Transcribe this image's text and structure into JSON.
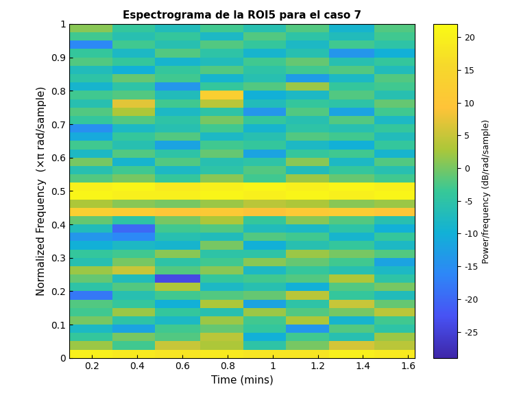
{
  "chart_data": {
    "type": "heatmap",
    "title": "Espectrograma de la ROI5 para el caso 7",
    "x_label": "Time (mins)",
    "y_label": "Normalized Frequency  (×π rad/sample)",
    "colorbar_label": "Power/frequency (dB/rad/sample)",
    "x_edges": [
      0.1,
      0.29,
      0.48,
      0.68,
      0.87,
      1.06,
      1.25,
      1.45,
      1.63
    ],
    "y_edges": [
      0,
      0.025,
      0.05,
      0.075,
      0.1,
      0.125,
      0.15,
      0.175,
      0.2,
      0.225,
      0.25,
      0.275,
      0.3,
      0.325,
      0.35,
      0.375,
      0.4,
      0.425,
      0.45,
      0.475,
      0.5,
      0.525,
      0.55,
      0.575,
      0.6,
      0.625,
      0.65,
      0.675,
      0.7,
      0.725,
      0.75,
      0.775,
      0.8,
      0.825,
      0.85,
      0.875,
      0.9,
      0.925,
      0.95,
      0.975,
      1
    ],
    "cells": [
      [
        20,
        19,
        18,
        19,
        18,
        18,
        20,
        19
      ],
      [
        2,
        -3,
        5,
        3,
        -5,
        0,
        6,
        4
      ],
      [
        -4,
        0,
        -2,
        4,
        -10,
        -3,
        -6,
        2
      ],
      [
        -8,
        -12,
        -3,
        -1,
        -4,
        -14,
        -2,
        -5
      ],
      [
        0,
        -5,
        -8,
        2,
        -3,
        3,
        -9,
        -3
      ],
      [
        -3,
        2,
        -4,
        -6,
        2,
        -2,
        0,
        4
      ],
      [
        -2,
        -4,
        -10,
        3,
        -12,
        -5,
        5,
        -1
      ],
      [
        -18,
        -6,
        -3,
        -2,
        -1,
        4,
        -4,
        -7
      ],
      [
        -5,
        -2,
        3,
        -8,
        -6,
        -10,
        -2,
        0
      ],
      [
        -1,
        -7,
        -24,
        -4,
        -3,
        -2,
        3,
        -5
      ],
      [
        2,
        5,
        -2,
        1,
        -8,
        -4,
        -6,
        -8
      ],
      [
        -6,
        0,
        -5,
        -3,
        1,
        -1,
        -3,
        -12
      ],
      [
        -4,
        -3,
        1,
        -5,
        -5,
        2,
        0,
        -2
      ],
      [
        -10,
        -8,
        -9,
        0,
        -10,
        -6,
        -4,
        -8
      ],
      [
        -14,
        -16,
        -6,
        -7,
        -2,
        -3,
        -9,
        -4
      ],
      [
        -7,
        -20,
        -3,
        -2,
        -7,
        -8,
        -5,
        -10
      ],
      [
        -1,
        -5,
        0,
        3,
        -4,
        1,
        -2,
        -6
      ],
      [
        13,
        12,
        10,
        11,
        9,
        11,
        12,
        10
      ],
      [
        3,
        1,
        0,
        2,
        4,
        3,
        1,
        2
      ],
      [
        21,
        20,
        20,
        21,
        20,
        21,
        20,
        21
      ],
      [
        20,
        21,
        19,
        20,
        21,
        20,
        21,
        20
      ],
      [
        -2,
        0,
        -4,
        1,
        -3,
        2,
        -1,
        -3
      ],
      [
        -6,
        -3,
        -8,
        -5,
        -2,
        -7,
        -4,
        -6
      ],
      [
        0,
        -9,
        -2,
        -6,
        -5,
        1,
        -8,
        -2
      ],
      [
        -8,
        -2,
        -5,
        -1,
        -12,
        -4,
        -3,
        -9
      ],
      [
        -3,
        -6,
        -12,
        -3,
        -4,
        -8,
        -10,
        -4
      ],
      [
        -11,
        -4,
        -2,
        -8,
        -6,
        -2,
        -3,
        -7
      ],
      [
        -15,
        -8,
        -6,
        -3,
        -9,
        -5,
        -6,
        -4
      ],
      [
        -4,
        -2,
        -5,
        0,
        -4,
        -6,
        -2,
        -8
      ],
      [
        -2,
        3,
        -8,
        -5,
        -14,
        -2,
        -12,
        -3
      ],
      [
        -6,
        7,
        -3,
        4,
        -7,
        -4,
        -5,
        -1
      ],
      [
        -3,
        -2,
        -7,
        13,
        -10,
        -8,
        -2,
        -6
      ],
      [
        -9,
        -5,
        -14,
        -4,
        -2,
        2,
        -4,
        -3
      ],
      [
        -5,
        -1,
        -3,
        -9,
        -6,
        -13,
        -8,
        -2
      ],
      [
        -7,
        -10,
        -4,
        -2,
        -5,
        -3,
        -2,
        -7
      ],
      [
        -2,
        -4,
        -9,
        -7,
        -3,
        -1,
        -6,
        -4
      ],
      [
        -4,
        -8,
        -2,
        -5,
        -9,
        -6,
        -14,
        -10
      ],
      [
        -16,
        -3,
        -6,
        -2,
        -4,
        -8,
        -3,
        -5
      ],
      [
        -3,
        -6,
        -4,
        -8,
        -2,
        -5,
        -7,
        -3
      ],
      [
        1,
        -4,
        -7,
        -3,
        -6,
        -2,
        -9,
        -2
      ]
    ],
    "xlim": [
      0.1,
      1.63
    ],
    "xticks": [
      0.2,
      0.4,
      0.6,
      0.8,
      1,
      1.2,
      1.4,
      1.6
    ],
    "ylim": [
      0,
      1
    ],
    "yticks": [
      0,
      0.1,
      0.2,
      0.3,
      0.4,
      0.5,
      0.6,
      0.7,
      0.8,
      0.9,
      1
    ],
    "colorbar_lim": [
      -29,
      22
    ],
    "colorbar_ticks": [
      -25,
      -20,
      -15,
      -10,
      -5,
      0,
      5,
      10,
      15,
      20
    ]
  }
}
